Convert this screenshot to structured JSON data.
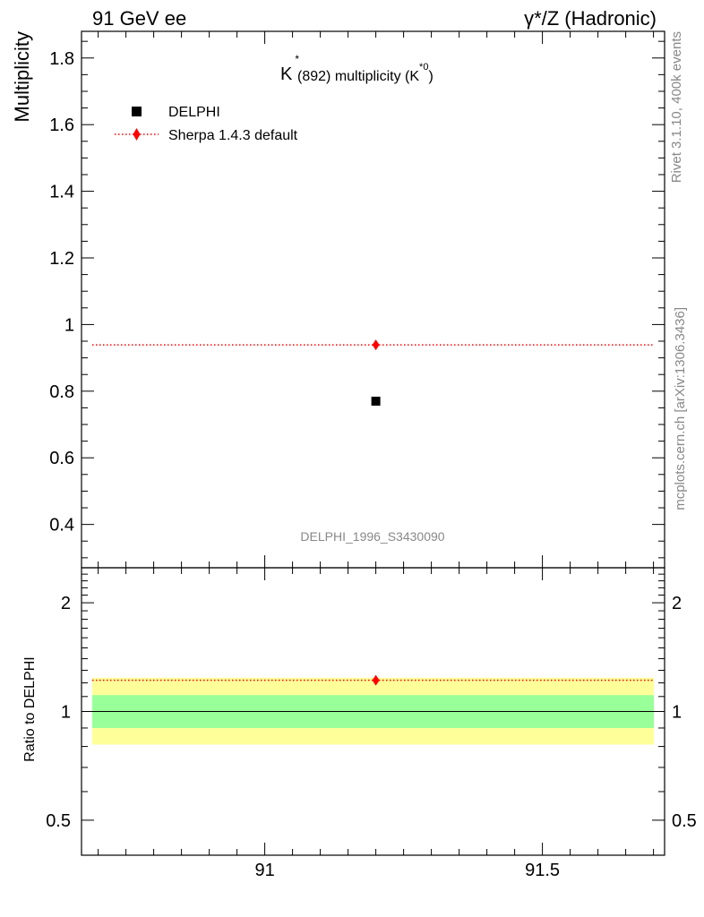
{
  "header": {
    "left_title": "91 GeV ee",
    "right_title": "γ*/Z (Hadronic)"
  },
  "side_text": {
    "rivet": "Rivet 3.1.10,  400k events",
    "mcplots": "mcplots.cern.ch [arXiv:1306.3436]"
  },
  "chart_data": [
    {
      "type": "scatter",
      "title_parts": {
        "k": "K",
        "star": "*",
        "mid": "(892) multiplicity (K",
        "sup": "*0",
        "end": ")"
      },
      "ylabel": "Multiplicity",
      "xlim": [
        90.67,
        91.72
      ],
      "ylim": [
        0.27,
        1.88
      ],
      "yticks": [
        0.4,
        0.6,
        0.8,
        1.0,
        1.2,
        1.4,
        1.6,
        1.8
      ],
      "ytick_labels": [
        "0.4",
        "0.6",
        "0.8",
        "1",
        "1.2",
        "1.4",
        "1.6",
        "1.8"
      ],
      "analysis_id": "DELPHI_1996_S3430090",
      "legend_position": "top-left",
      "series": [
        {
          "name": "DELPHI",
          "marker": "square",
          "color": "#000000",
          "x": [
            91.2
          ],
          "y": [
            0.77
          ]
        },
        {
          "name": "Sherpa 1.4.3 default",
          "marker": "diamond",
          "line": "dotted",
          "color": "#ff0000",
          "x": [
            91.2
          ],
          "y": [
            0.939
          ]
        }
      ]
    },
    {
      "type": "scatter",
      "ylabel": "Ratio to DELPHI",
      "xlim": [
        90.67,
        91.72
      ],
      "ylim": [
        0.4,
        2.5
      ],
      "yscale": "log",
      "yticks": [
        0.5,
        1,
        2
      ],
      "ytick_labels": [
        "0.5",
        "1",
        "2"
      ],
      "xticks": [
        91,
        91.5
      ],
      "xtick_labels": [
        "91",
        "91.5"
      ],
      "bands": [
        {
          "name": "outer",
          "color": "#ffff99",
          "range": [
            0.81,
            1.24
          ]
        },
        {
          "name": "inner",
          "color": "#99ff99",
          "range": [
            0.9,
            1.11
          ]
        }
      ],
      "reference_line": 1.0,
      "series": [
        {
          "name": "Sherpa 1.4.3 default",
          "marker": "diamond",
          "line": "dotted",
          "color": "#ff0000",
          "x": [
            91.2
          ],
          "y": [
            1.22
          ]
        }
      ]
    }
  ]
}
